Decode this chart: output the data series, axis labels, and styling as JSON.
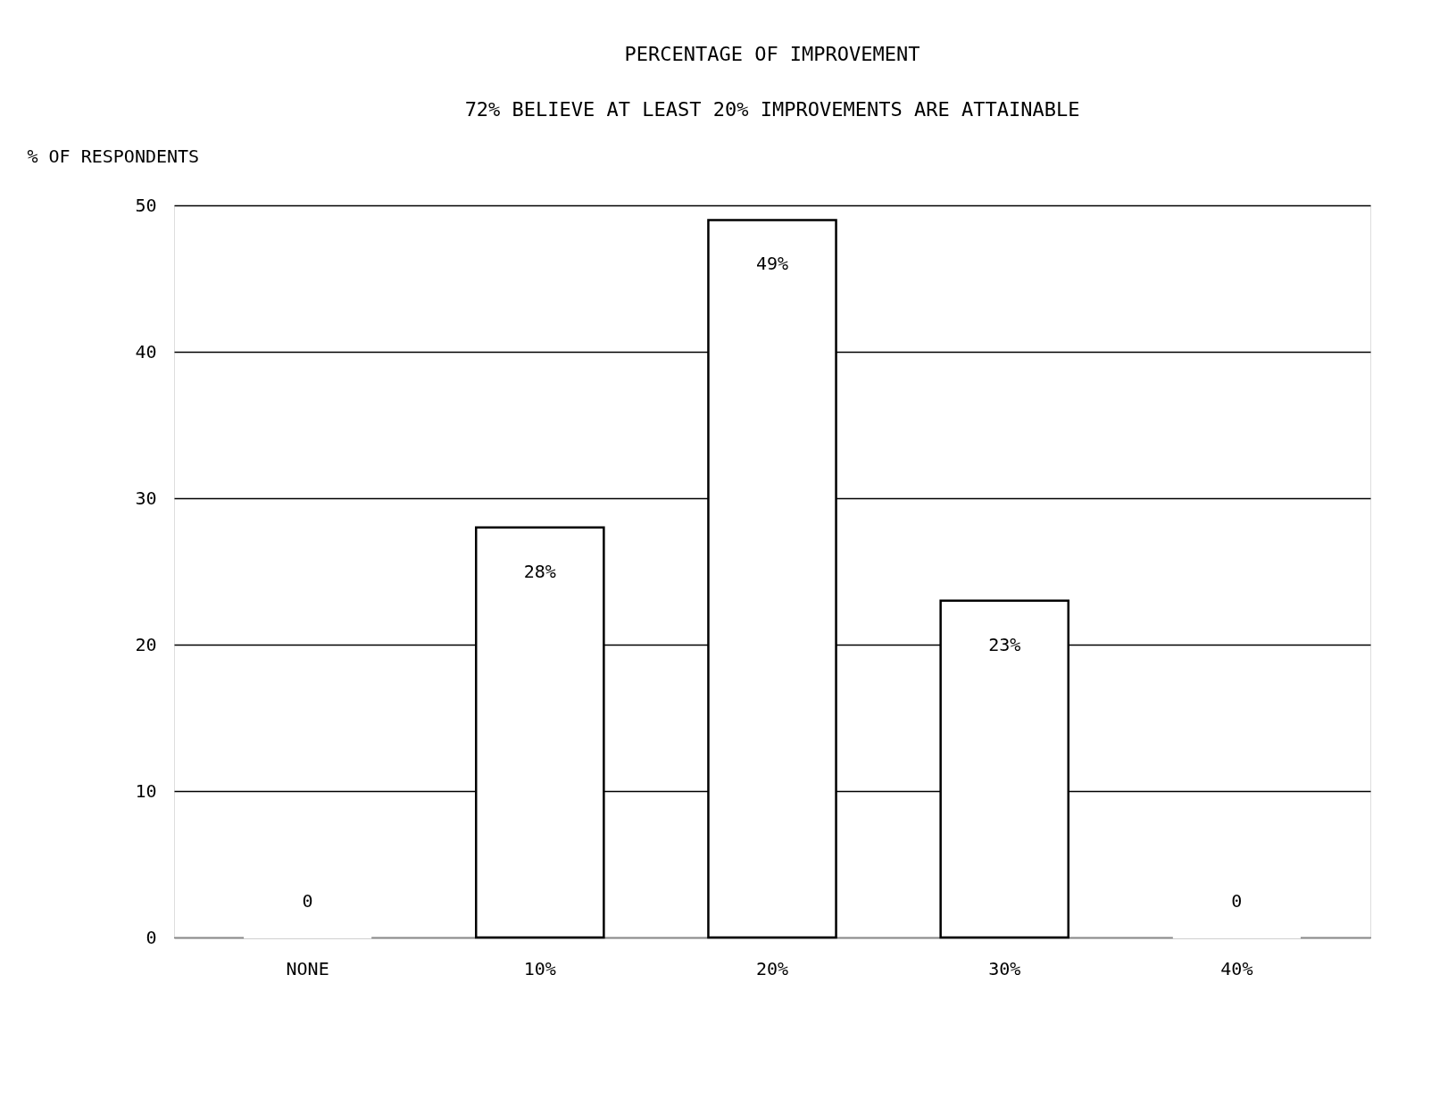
{
  "chart_data": {
    "type": "bar",
    "title": "PERCENTAGE OF IMPROVEMENT",
    "subtitle": "72% BELIEVE AT LEAST 20% IMPROVEMENTS ARE ATTAINABLE",
    "ylabel": "% OF RESPONDENTS",
    "categories": [
      "NONE",
      "10%",
      "20%",
      "30%",
      "40%"
    ],
    "values": [
      0,
      28,
      49,
      23,
      0
    ],
    "value_labels": [
      "0",
      "28%",
      "49%",
      "23%",
      "0"
    ],
    "color": "#ffffff",
    "ylim": [
      0,
      50
    ],
    "yticks": [
      0,
      10,
      20,
      30,
      40,
      50
    ],
    "grid": "y"
  }
}
